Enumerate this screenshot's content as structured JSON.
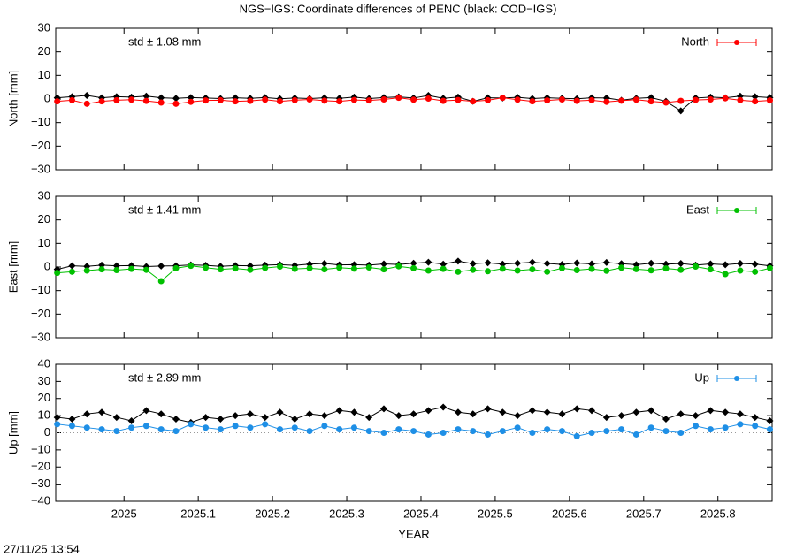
{
  "title": "NGS−IGS: Coordinate differences of PENC (black: COD−IGS)",
  "timestamp": "27/11/25 13:54",
  "chart_data": [
    {
      "type": "line",
      "ylabel": "North [mm]",
      "annotation": "std ± 1.08 mm",
      "annotation_color": "#ff0000",
      "xlim": [
        2024.908,
        2025.873
      ],
      "ylim": [
        -30,
        30
      ],
      "yticks": [
        {
          "value": -30,
          "label": "−30"
        },
        {
          "value": -20,
          "label": "−20"
        },
        {
          "value": -10,
          "label": "−10"
        },
        0,
        10,
        20,
        30
      ],
      "x": [
        2024.91,
        2024.93,
        2024.95,
        2024.97,
        2024.99,
        2025.01,
        2025.03,
        2025.05,
        2025.07,
        2025.09,
        2025.11,
        2025.13,
        2025.15,
        2025.17,
        2025.19,
        2025.21,
        2025.23,
        2025.25,
        2025.27,
        2025.29,
        2025.31,
        2025.33,
        2025.35,
        2025.37,
        2025.39,
        2025.41,
        2025.43,
        2025.45,
        2025.47,
        2025.49,
        2025.51,
        2025.53,
        2025.55,
        2025.57,
        2025.59,
        2025.61,
        2025.63,
        2025.65,
        2025.67,
        2025.69,
        2025.71,
        2025.73,
        2025.75,
        2025.77,
        2025.79,
        2025.81,
        2025.83,
        2025.85,
        2025.87
      ],
      "series": [
        {
          "color": "#000000",
          "marker": "diamond",
          "values": [
            0.5,
            1,
            1.5,
            0.5,
            1,
            0.8,
            1.2,
            0.5,
            0.3,
            0.6,
            0.4,
            0.2,
            0.5,
            0.3,
            0.6,
            0.1,
            0.4,
            0.2,
            0.5,
            0.3,
            0.8,
            0.2,
            0.6,
            0.9,
            0.4,
            1.5,
            0.3,
            0.8,
            -1,
            0.5,
            0.4,
            0.7,
            0.2,
            0.5,
            0.3,
            0.1,
            0.5,
            0.4,
            -0.5,
            0.3,
            0.6,
            -1,
            -5,
            0.4,
            0.8,
            0.5,
            1.2,
            1,
            0.6
          ]
        },
        {
          "name": "North",
          "color": "#ff0000",
          "marker": "circle",
          "values": [
            -1,
            -0.5,
            -2,
            -1,
            -0.5,
            -0.3,
            -0.8,
            -1.5,
            -2,
            -1.2,
            -0.6,
            -0.5,
            -1,
            -0.8,
            -0.3,
            -1,
            -0.5,
            -0.2,
            -0.7,
            -1,
            -0.4,
            -0.6,
            -0.2,
            0.5,
            -0.3,
            0.2,
            -0.8,
            -0.4,
            -1,
            -0.5,
            0.5,
            -0.3,
            -1,
            -0.6,
            -0.2,
            -0.8,
            -0.5,
            -1.2,
            -0.7,
            -0.3,
            -1,
            -1.5,
            -0.8,
            -0.4,
            -0.2,
            0.3,
            -0.5,
            -1,
            -0.6
          ]
        }
      ]
    },
    {
      "type": "line",
      "ylabel": "East [mm]",
      "annotation": "std ± 1.41 mm",
      "annotation_color": "#00c000",
      "xlim": [
        2024.908,
        2025.873
      ],
      "ylim": [
        -30,
        30
      ],
      "yticks": [
        {
          "value": -30,
          "label": "−30"
        },
        {
          "value": -20,
          "label": "−20"
        },
        {
          "value": -10,
          "label": "−10"
        },
        0,
        10,
        20,
        30
      ],
      "x": [
        2024.91,
        2024.93,
        2024.95,
        2024.97,
        2024.99,
        2025.01,
        2025.03,
        2025.05,
        2025.07,
        2025.09,
        2025.11,
        2025.13,
        2025.15,
        2025.17,
        2025.19,
        2025.21,
        2025.23,
        2025.25,
        2025.27,
        2025.29,
        2025.31,
        2025.33,
        2025.35,
        2025.37,
        2025.39,
        2025.41,
        2025.43,
        2025.45,
        2025.47,
        2025.49,
        2025.51,
        2025.53,
        2025.55,
        2025.57,
        2025.59,
        2025.61,
        2025.63,
        2025.65,
        2025.67,
        2025.69,
        2025.71,
        2025.73,
        2025.75,
        2025.77,
        2025.79,
        2025.81,
        2025.83,
        2025.85,
        2025.87
      ],
      "series": [
        {
          "color": "#000000",
          "marker": "diamond",
          "values": [
            -1,
            0.5,
            0.3,
            0.8,
            0.5,
            0.6,
            0.2,
            0.4,
            0.5,
            0.9,
            0.7,
            0.3,
            0.6,
            0.5,
            0.8,
            1,
            0.7,
            1.2,
            1.5,
            0.9,
            1,
            0.8,
            1.3,
            1.1,
            1.6,
            2,
            1.2,
            2.5,
            1.4,
            1.8,
            1.2,
            1.6,
            2,
            1.5,
            1.1,
            1.7,
            1.3,
            1.9,
            1.4,
            1,
            1.6,
            1.2,
            1.5,
            0.8,
            1.3,
            1,
            1.5,
            1.2,
            0.5
          ]
        },
        {
          "name": "East",
          "color": "#00c000",
          "marker": "circle",
          "values": [
            -2.5,
            -2,
            -1.5,
            -1,
            -1.3,
            -0.8,
            -1.2,
            -6,
            -0.5,
            0.5,
            -0.3,
            -1,
            -0.6,
            -1.2,
            -0.4,
            0.2,
            -0.8,
            -0.5,
            -1,
            -0.3,
            -0.7,
            -0.2,
            -1,
            0.3,
            -0.5,
            -1.5,
            -0.8,
            -2,
            -1.2,
            -1.8,
            -0.7,
            -1.5,
            -1,
            -2,
            -0.5,
            -1.3,
            -0.8,
            -1.6,
            -0.3,
            -0.9,
            -1.4,
            -0.6,
            -1.2,
            0.2,
            -1,
            -3,
            -1.5,
            -2,
            -0.5
          ]
        }
      ]
    },
    {
      "type": "line",
      "ylabel": "Up [mm]",
      "xlabel": "YEAR",
      "annotation": "std ± 2.89 mm",
      "annotation_color": "#1e8fe6",
      "zero_line": true,
      "xlim": [
        2024.908,
        2025.873
      ],
      "ylim": [
        -40,
        40
      ],
      "xticks": [
        2025,
        2025.1,
        2025.2,
        2025.3,
        2025.4,
        2025.5,
        2025.6,
        2025.7,
        2025.8
      ],
      "yticks": [
        {
          "value": -40,
          "label": "−40"
        },
        {
          "value": -30,
          "label": "−30"
        },
        {
          "value": -20,
          "label": "−20"
        },
        {
          "value": -10,
          "label": "−10"
        },
        0,
        10,
        20,
        30,
        40
      ],
      "x": [
        2024.91,
        2024.93,
        2024.95,
        2024.97,
        2024.99,
        2025.01,
        2025.03,
        2025.05,
        2025.07,
        2025.09,
        2025.11,
        2025.13,
        2025.15,
        2025.17,
        2025.19,
        2025.21,
        2025.23,
        2025.25,
        2025.27,
        2025.29,
        2025.31,
        2025.33,
        2025.35,
        2025.37,
        2025.39,
        2025.41,
        2025.43,
        2025.45,
        2025.47,
        2025.49,
        2025.51,
        2025.53,
        2025.55,
        2025.57,
        2025.59,
        2025.61,
        2025.63,
        2025.65,
        2025.67,
        2025.69,
        2025.71,
        2025.73,
        2025.75,
        2025.77,
        2025.79,
        2025.81,
        2025.83,
        2025.85,
        2025.87
      ],
      "series": [
        {
          "color": "#000000",
          "marker": "diamond",
          "values": [
            9,
            8,
            11,
            12,
            9,
            7,
            13,
            11,
            8,
            6,
            9,
            8,
            10,
            11,
            9,
            12,
            8,
            11,
            10,
            13,
            12,
            9,
            14,
            10,
            11,
            13,
            15,
            12,
            11,
            14,
            12,
            10,
            13,
            12,
            11,
            14,
            13,
            9,
            10,
            12,
            13,
            8,
            11,
            10,
            13,
            12,
            11,
            9,
            7
          ]
        },
        {
          "name": "Up",
          "color": "#1e8fe6",
          "marker": "circle",
          "values": [
            5,
            4,
            3,
            2,
            1,
            3,
            4,
            2,
            1,
            5,
            3,
            2,
            4,
            3,
            5,
            2,
            3,
            1,
            4,
            2,
            3,
            1,
            0,
            2,
            1,
            -1,
            0,
            2,
            1,
            -1,
            1,
            3,
            0,
            2,
            1,
            -2,
            0,
            1,
            2,
            -1,
            3,
            1,
            0,
            4,
            2,
            3,
            5,
            4,
            2
          ]
        }
      ]
    }
  ]
}
